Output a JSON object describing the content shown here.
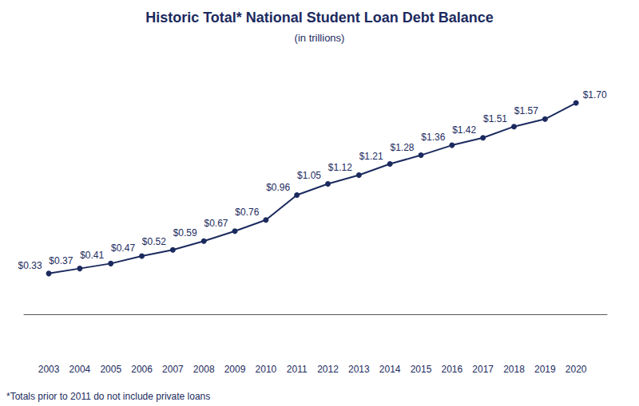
{
  "chart_data": {
    "type": "line",
    "title": "Historic Total* National Student Loan Debt Balance",
    "subtitle": "(in trillions)",
    "footnote": "*Totals prior to 2011 do not include private loans",
    "x": [
      2003,
      2004,
      2005,
      2006,
      2007,
      2008,
      2009,
      2010,
      2011,
      2012,
      2013,
      2014,
      2015,
      2016,
      2017,
      2018,
      2019,
      2020
    ],
    "values": [
      0.33,
      0.37,
      0.41,
      0.47,
      0.52,
      0.59,
      0.67,
      0.76,
      0.96,
      1.05,
      1.12,
      1.21,
      1.28,
      1.36,
      1.42,
      1.51,
      1.57,
      1.7
    ],
    "value_labels": [
      "$0.33",
      "$0.37",
      "$0.41",
      "$0.47",
      "$0.52",
      "$0.59",
      "$0.67",
      "$0.76",
      "$0.96",
      "$1.05",
      "$1.12",
      "$1.21",
      "$1.28",
      "$1.36",
      "$1.42",
      "$1.51",
      "$1.57",
      "$1.70"
    ],
    "color": "#1b2a5e",
    "marker": "circle",
    "xlim": [
      2002.2,
      2021.0
    ],
    "xticks": [
      2003,
      2004,
      2005,
      2006,
      2007,
      2008,
      2009,
      2010,
      2011,
      2012,
      2013,
      2014,
      2015,
      2016,
      2017,
      2018,
      2019,
      2020
    ],
    "ylim": [
      -0.35,
      1.95
    ],
    "grid": false,
    "data_labels": true,
    "tick_labels": "x"
  }
}
